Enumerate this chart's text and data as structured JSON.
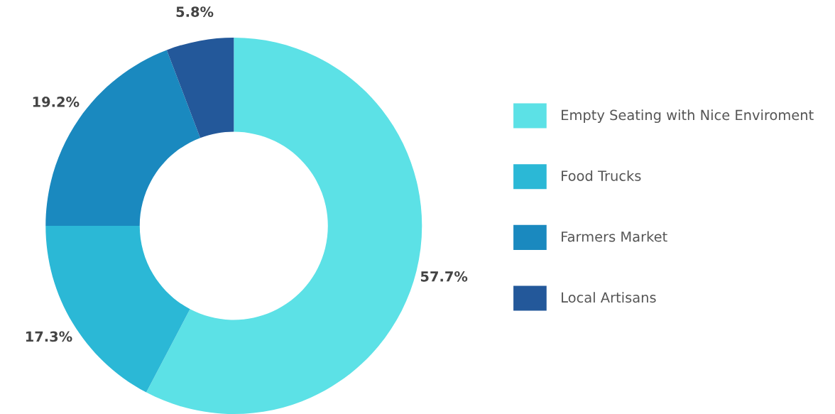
{
  "chart_data": {
    "type": "donut",
    "categories": [
      "Empty Seating with Nice Enviroment",
      "Food Trucks",
      "Farmers Market",
      "Local Artisans"
    ],
    "values": [
      57.7,
      17.3,
      19.2,
      5.8
    ],
    "colors": [
      "#5ce1e6",
      "#2bb8d6",
      "#1a89bf",
      "#23589a"
    ],
    "value_labels": [
      "57.7%",
      "17.3%",
      "19.2%",
      "5.8%"
    ],
    "legend": "right"
  }
}
